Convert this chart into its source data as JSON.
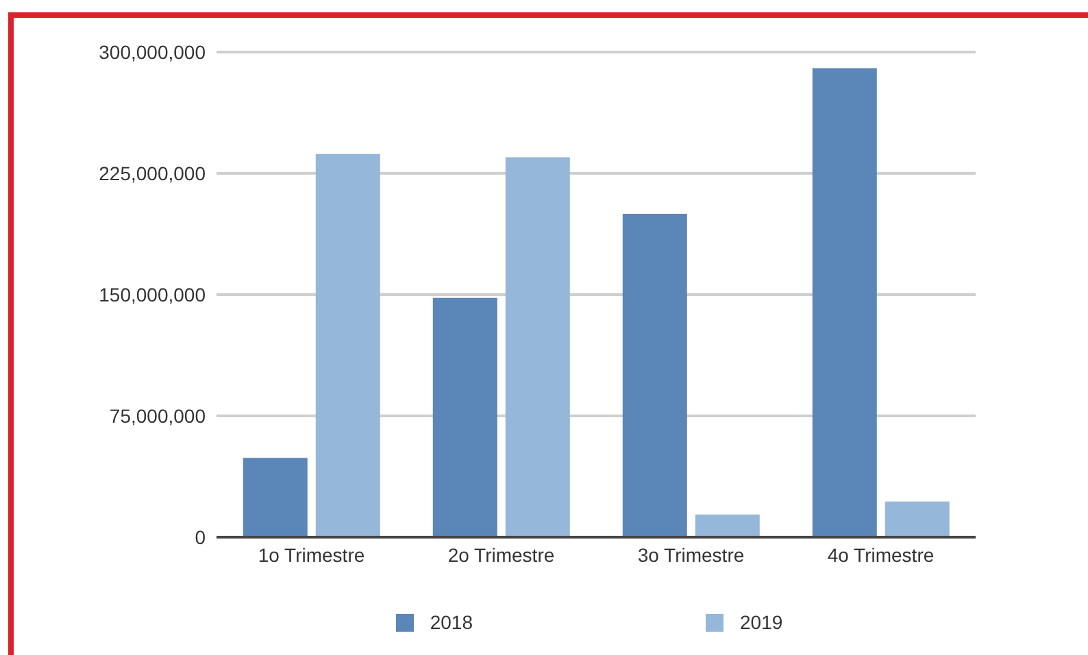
{
  "chart_data": {
    "type": "bar",
    "categories": [
      "1o Trimestre",
      "2o Trimestre",
      "3o Trimestre",
      "4o Trimestre"
    ],
    "series": [
      {
        "name": "2018",
        "color": "#5b86b8",
        "values": [
          49000000,
          148000000,
          200000000,
          290000000
        ]
      },
      {
        "name": "2019",
        "color": "#94b7da",
        "values": [
          237000000,
          235000000,
          14000000,
          22000000
        ]
      }
    ],
    "ylim": [
      0,
      300000000
    ],
    "yticks": [
      {
        "value": 0,
        "label": "0"
      },
      {
        "value": 75000000,
        "label": "75,000,000"
      },
      {
        "value": 150000000,
        "label": "150,000,000"
      },
      {
        "value": 225000000,
        "label": "225,000,000"
      },
      {
        "value": 300000000,
        "label": "300,000,000"
      }
    ],
    "grid": "y",
    "legend": "bottom"
  }
}
